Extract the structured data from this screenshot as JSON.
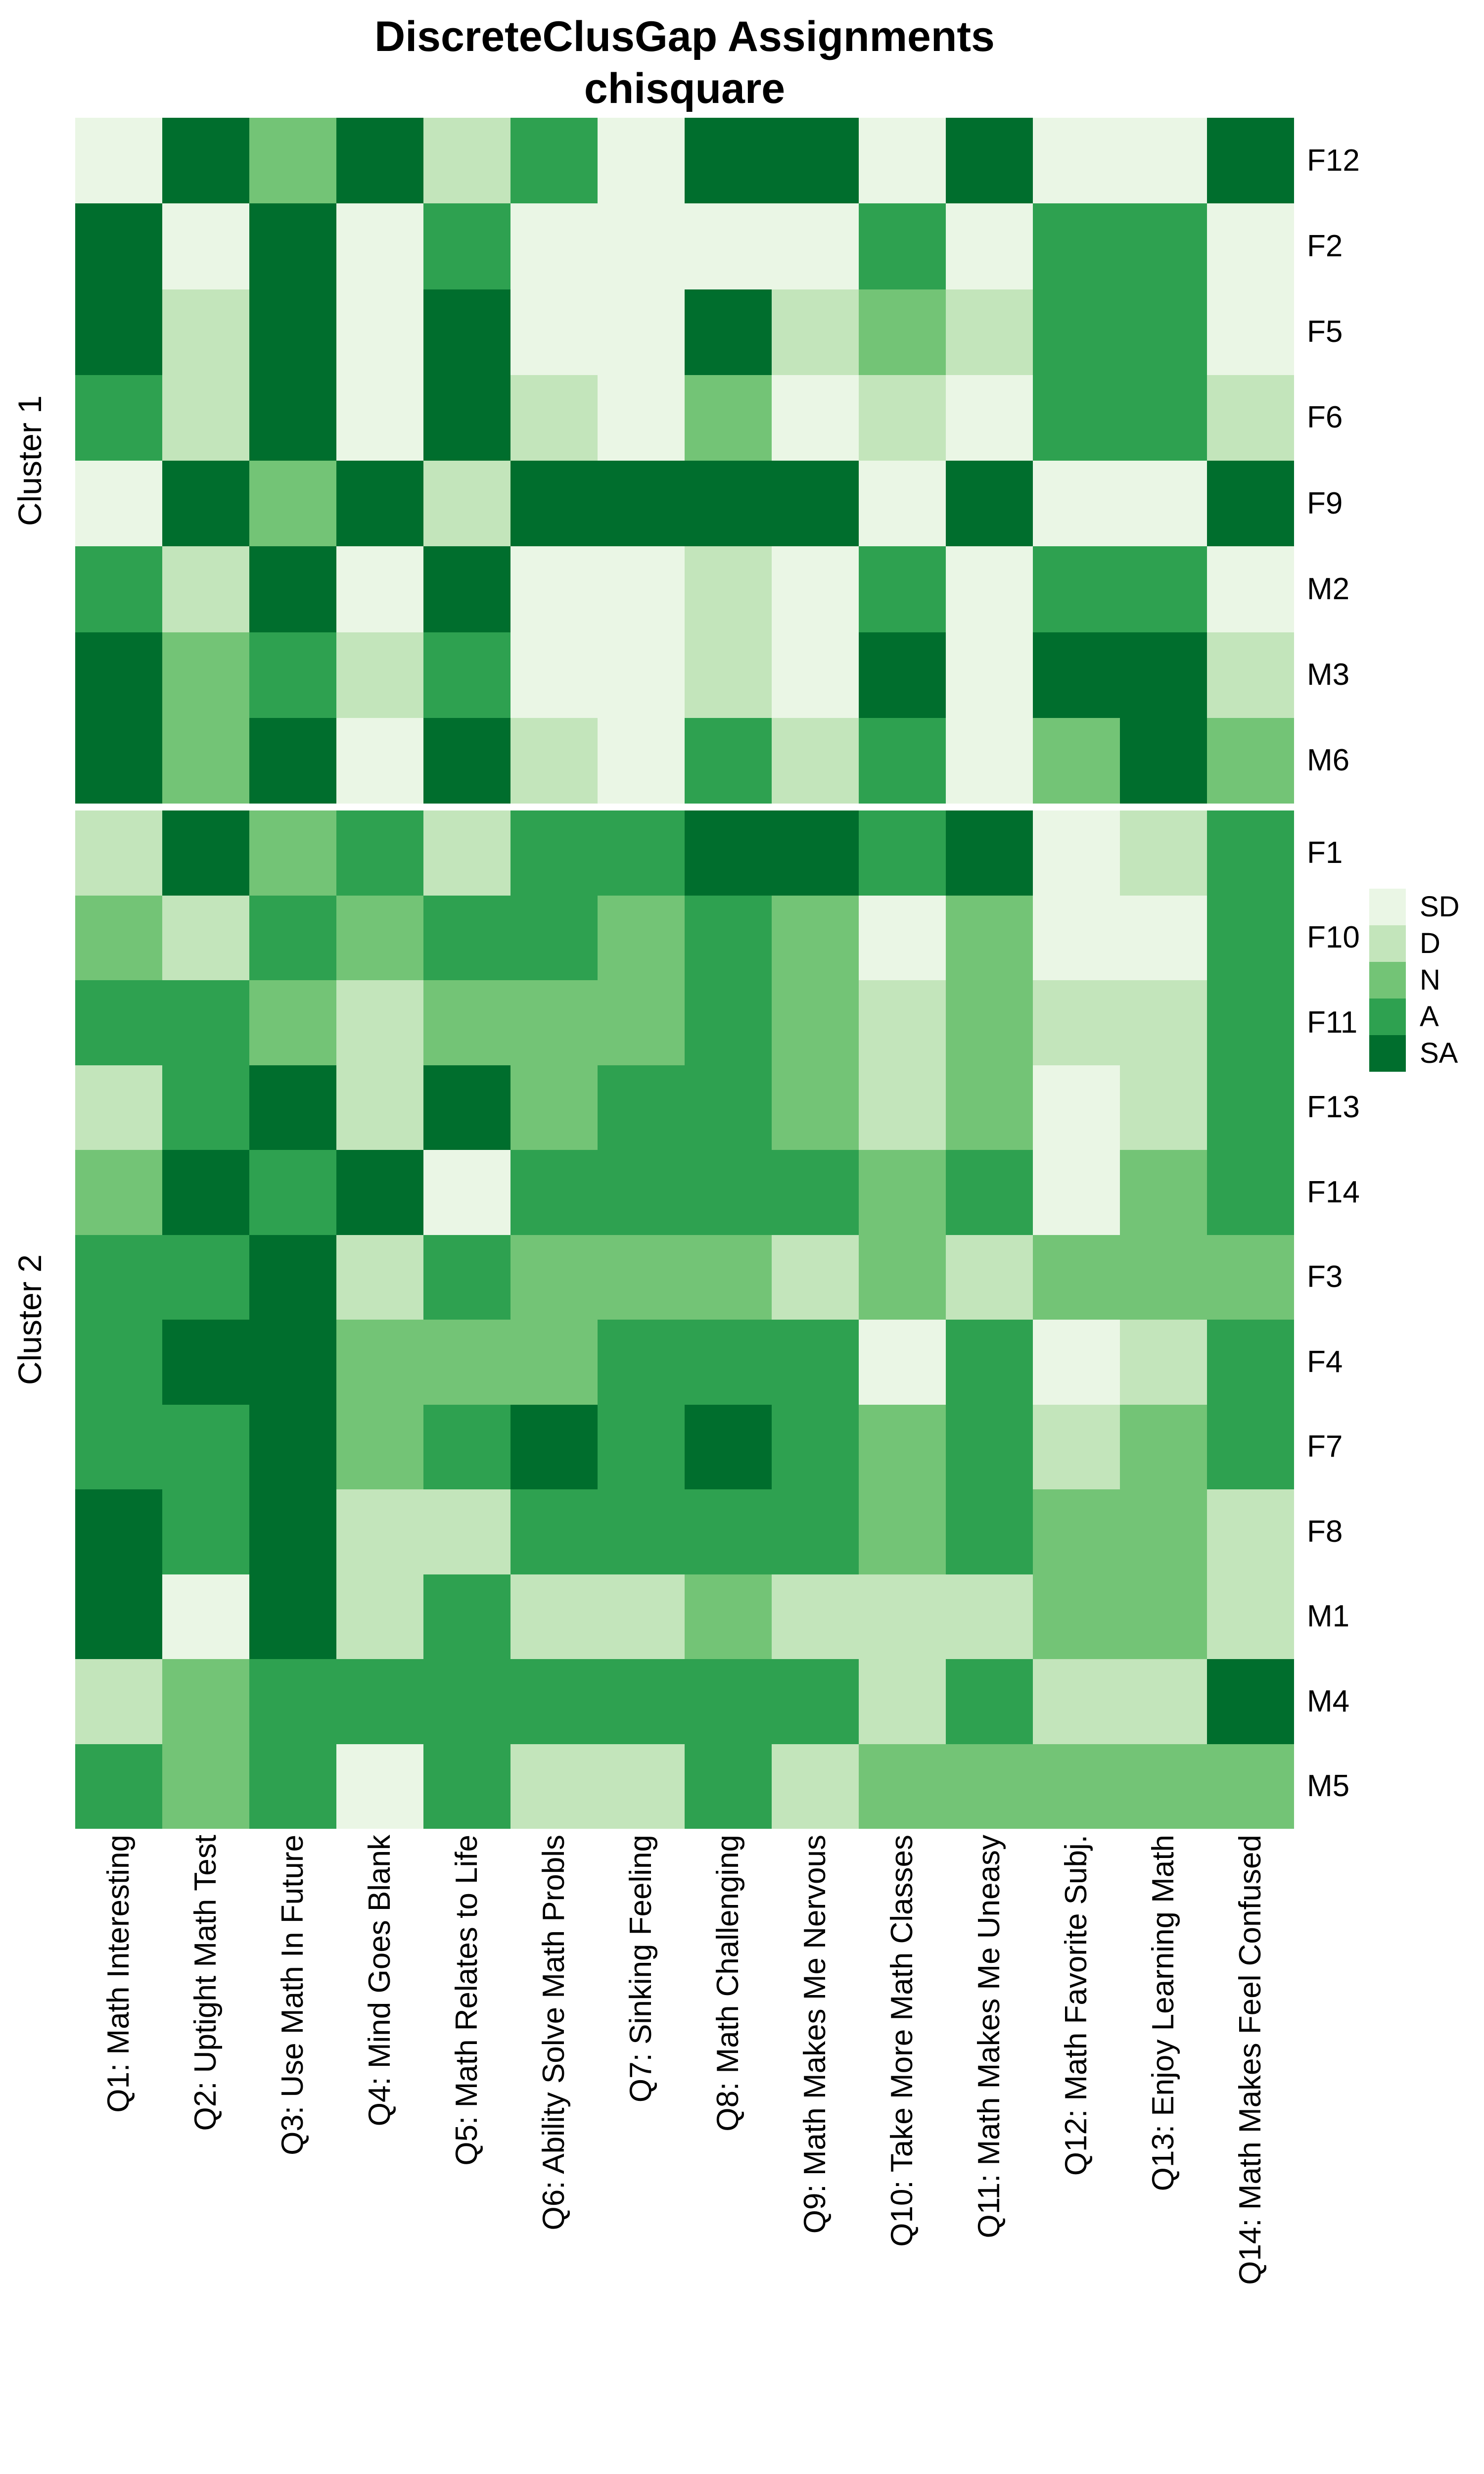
{
  "chart_data": {
    "type": "heatmap",
    "title": "DiscreteClusGap Assignments",
    "subtitle": "chisquare",
    "legend_position": "right",
    "legend_levels": [
      "SD",
      "D",
      "N",
      "A",
      "SA"
    ],
    "colors": {
      "SD": "#eaf6e5",
      "D": "#c3e5bb",
      "N": "#73c476",
      "A": "#2ea150",
      "SA": "#006e2d"
    },
    "x_labels": [
      "Q1: Math Interesting",
      "Q2: Uptight Math Test",
      "Q3: Use Math In Future",
      "Q4: Mind Goes Blank",
      "Q5: Math Relates to Life",
      "Q6: Ability Solve Math Probls",
      "Q7: Sinking Feeling",
      "Q8: Math Challenging",
      "Q9: Math Makes Me Nervous",
      "Q10: Take More Math Classes",
      "Q11: Math Makes Me Uneasy",
      "Q12: Math Favorite Subj.",
      "Q13: Enjoy Learning Math",
      "Q14: Math Makes Feel Confused"
    ],
    "clusters": [
      {
        "name": "Cluster 1",
        "rows": [
          {
            "label": "F12",
            "values": [
              "SD",
              "SA",
              "N",
              "SA",
              "D",
              "A",
              "SD",
              "SA",
              "SA",
              "SD",
              "SA",
              "SD",
              "SD",
              "SA"
            ]
          },
          {
            "label": "F2",
            "values": [
              "SA",
              "SD",
              "SA",
              "SD",
              "A",
              "SD",
              "SD",
              "SD",
              "SD",
              "A",
              "SD",
              "A",
              "A",
              "SD"
            ]
          },
          {
            "label": "F5",
            "values": [
              "SA",
              "D",
              "SA",
              "SD",
              "SA",
              "SD",
              "SD",
              "SA",
              "D",
              "N",
              "D",
              "A",
              "A",
              "SD"
            ]
          },
          {
            "label": "F6",
            "values": [
              "A",
              "D",
              "SA",
              "SD",
              "SA",
              "D",
              "SD",
              "N",
              "SD",
              "D",
              "SD",
              "A",
              "A",
              "D"
            ]
          },
          {
            "label": "F9",
            "values": [
              "SD",
              "SA",
              "N",
              "SA",
              "D",
              "SA",
              "SA",
              "SA",
              "SA",
              "SD",
              "SA",
              "SD",
              "SD",
              "SA"
            ]
          },
          {
            "label": "M2",
            "values": [
              "A",
              "D",
              "SA",
              "SD",
              "SA",
              "SD",
              "SD",
              "D",
              "SD",
              "A",
              "SD",
              "A",
              "A",
              "SD"
            ]
          },
          {
            "label": "M3",
            "values": [
              "SA",
              "N",
              "A",
              "D",
              "A",
              "SD",
              "SD",
              "D",
              "SD",
              "SA",
              "SD",
              "SA",
              "SA",
              "D"
            ]
          },
          {
            "label": "M6",
            "values": [
              "SA",
              "N",
              "SA",
              "SD",
              "SA",
              "D",
              "SD",
              "A",
              "D",
              "A",
              "SD",
              "N",
              "SA",
              "N"
            ]
          }
        ]
      },
      {
        "name": "Cluster 2",
        "rows": [
          {
            "label": "F1",
            "values": [
              "D",
              "SA",
              "N",
              "A",
              "D",
              "A",
              "A",
              "SA",
              "SA",
              "A",
              "SA",
              "SD",
              "D",
              "A"
            ]
          },
          {
            "label": "F10",
            "values": [
              "N",
              "D",
              "A",
              "N",
              "A",
              "A",
              "N",
              "A",
              "N",
              "SD",
              "N",
              "SD",
              "SD",
              "A"
            ]
          },
          {
            "label": "F11",
            "values": [
              "A",
              "A",
              "N",
              "D",
              "N",
              "N",
              "N",
              "A",
              "N",
              "D",
              "N",
              "D",
              "D",
              "A"
            ]
          },
          {
            "label": "F13",
            "values": [
              "D",
              "A",
              "SA",
              "D",
              "SA",
              "N",
              "A",
              "A",
              "N",
              "D",
              "N",
              "SD",
              "D",
              "A"
            ]
          },
          {
            "label": "F14",
            "values": [
              "N",
              "SA",
              "A",
              "SA",
              "SD",
              "A",
              "A",
              "A",
              "A",
              "N",
              "A",
              "SD",
              "N",
              "A"
            ]
          },
          {
            "label": "F3",
            "values": [
              "A",
              "A",
              "SA",
              "D",
              "A",
              "N",
              "N",
              "N",
              "D",
              "N",
              "D",
              "N",
              "N",
              "N"
            ]
          },
          {
            "label": "F4",
            "values": [
              "A",
              "SA",
              "SA",
              "N",
              "N",
              "N",
              "A",
              "A",
              "A",
              "SD",
              "A",
              "SD",
              "D",
              "A"
            ]
          },
          {
            "label": "F7",
            "values": [
              "A",
              "A",
              "SA",
              "N",
              "A",
              "SA",
              "A",
              "SA",
              "A",
              "N",
              "A",
              "D",
              "N",
              "A"
            ]
          },
          {
            "label": "F8",
            "values": [
              "SA",
              "A",
              "SA",
              "D",
              "D",
              "A",
              "A",
              "A",
              "A",
              "N",
              "A",
              "N",
              "N",
              "D"
            ]
          },
          {
            "label": "M1",
            "values": [
              "SA",
              "SD",
              "SA",
              "D",
              "A",
              "D",
              "D",
              "N",
              "D",
              "D",
              "D",
              "N",
              "N",
              "D"
            ]
          },
          {
            "label": "M4",
            "values": [
              "D",
              "N",
              "A",
              "A",
              "A",
              "A",
              "A",
              "A",
              "A",
              "D",
              "A",
              "D",
              "D",
              "SA"
            ]
          },
          {
            "label": "M5",
            "values": [
              "A",
              "N",
              "A",
              "SD",
              "A",
              "D",
              "D",
              "A",
              "D",
              "N",
              "N",
              "N",
              "N",
              "N"
            ]
          }
        ]
      }
    ]
  }
}
